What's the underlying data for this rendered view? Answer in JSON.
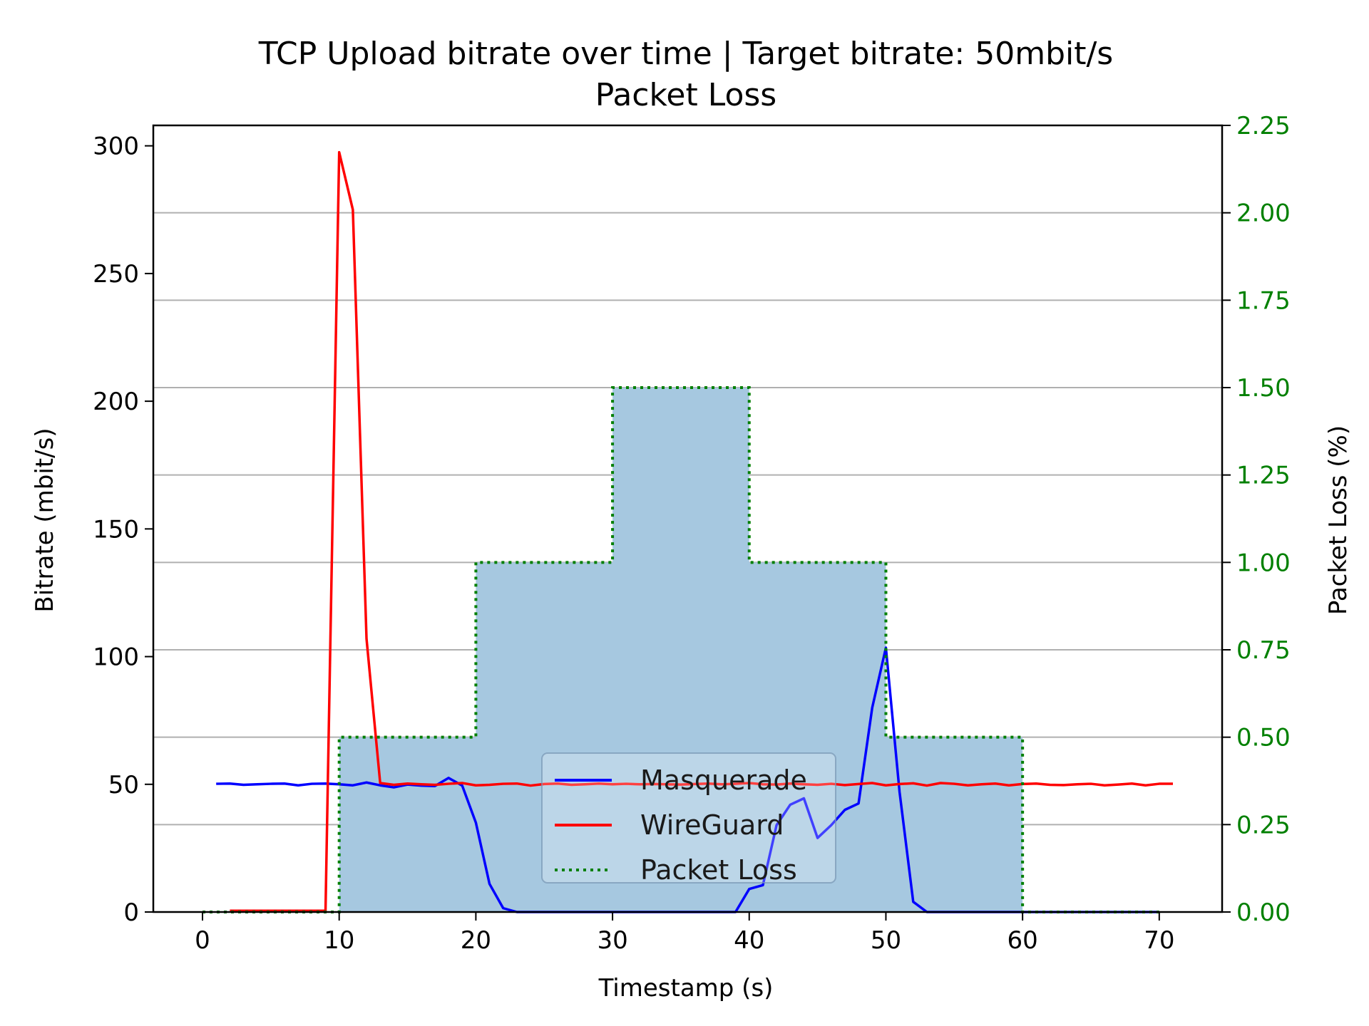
{
  "chart_data": {
    "type": "line",
    "title": "TCP Upload bitrate over time | Target bitrate: 50mbit/s",
    "subtitle": "Packet Loss",
    "xlabel": "Timestamp (s)",
    "ylabel": "Bitrate (mbit/s)",
    "y2label": "Packet Loss (%)",
    "xlim": [
      -3.6,
      74.6
    ],
    "ylim": [
      0,
      308
    ],
    "y2lim": [
      0,
      2.25
    ],
    "x_ticks": [
      0,
      10,
      20,
      30,
      40,
      50,
      60,
      70
    ],
    "x_tick_labels": [
      "0",
      "10",
      "20",
      "30",
      "40",
      "50",
      "60",
      "70"
    ],
    "y_ticks": [
      0,
      50,
      100,
      150,
      200,
      250,
      300
    ],
    "y_tick_labels": [
      "0",
      "50",
      "100",
      "150",
      "200",
      "250",
      "300"
    ],
    "y2_ticks": [
      0,
      0.25,
      0.5,
      0.75,
      1.0,
      1.25,
      1.5,
      1.75,
      2.0,
      2.25
    ],
    "y2_tick_labels": [
      "0.00",
      "0.25",
      "0.50",
      "0.75",
      "1.00",
      "1.25",
      "1.50",
      "1.75",
      "2.00",
      "2.25"
    ],
    "grid": "horizontal lines at right-axis ticks",
    "legend_position": "lower-center",
    "series": [
      {
        "name": "Masquerade",
        "color": "#0000ff",
        "axis": "left",
        "x": [
          1,
          2,
          3,
          4,
          5,
          6,
          7,
          8,
          9,
          10,
          11,
          12,
          13,
          14,
          15,
          16,
          17,
          18,
          19,
          20,
          21,
          22,
          23,
          24,
          25,
          26,
          27,
          28,
          29,
          30,
          31,
          32,
          33,
          34,
          35,
          36,
          37,
          38,
          39,
          40,
          41,
          42,
          43,
          44,
          45,
          46,
          47,
          48,
          49,
          50,
          51,
          52,
          53,
          54,
          55,
          56,
          57,
          58,
          59,
          60,
          61,
          62,
          63,
          64,
          65,
          66,
          67,
          68,
          69,
          70
        ],
        "y": [
          50.2,
          50.3,
          49.8,
          50.0,
          50.2,
          50.3,
          49.6,
          50.2,
          50.3,
          50.0,
          49.6,
          50.7,
          49.6,
          48.8,
          49.9,
          49.5,
          49.3,
          52.5,
          49.5,
          35,
          11,
          1.5,
          0,
          0,
          0,
          0,
          0,
          0,
          0,
          0,
          0,
          0,
          0,
          0,
          0,
          0,
          0,
          0,
          0,
          9,
          10.5,
          34,
          42,
          44.5,
          29,
          34,
          40,
          42.5,
          80,
          103.5,
          47,
          4,
          0,
          0,
          0,
          0,
          0,
          0,
          0,
          0,
          0,
          0,
          0,
          0,
          0,
          0,
          0,
          0,
          0,
          0
        ]
      },
      {
        "name": "WireGuard",
        "color": "#ff0000",
        "axis": "left",
        "x": [
          2,
          3,
          4,
          5,
          6,
          7,
          8,
          9,
          10,
          11,
          12,
          13,
          14,
          15,
          16,
          17,
          18,
          19,
          20,
          21,
          22,
          23,
          24,
          25,
          26,
          27,
          28,
          29,
          30,
          31,
          32,
          33,
          34,
          35,
          36,
          37,
          38,
          39,
          40,
          41,
          42,
          43,
          44,
          45,
          46,
          47,
          48,
          49,
          50,
          51,
          52,
          53,
          54,
          55,
          56,
          57,
          58,
          59,
          60,
          61,
          62,
          63,
          64,
          65,
          66,
          67,
          68,
          69,
          70,
          71
        ],
        "y": [
          0.5,
          0.5,
          0.5,
          0.5,
          0.5,
          0.5,
          0.5,
          0.5,
          297.5,
          275,
          107,
          50.5,
          49.8,
          50.3,
          50,
          49.8,
          50.2,
          50.5,
          49.6,
          49.8,
          50.2,
          50.3,
          49.5,
          50.1,
          50.3,
          49.8,
          50,
          50.3,
          50,
          50.2,
          50,
          50.1,
          50,
          49.9,
          50.1,
          50.3,
          50,
          50.2,
          50.5,
          50,
          49.9,
          50.3,
          50,
          49.8,
          50.2,
          49.7,
          50.1,
          50.5,
          49.6,
          50.1,
          50.4,
          49.5,
          50.5,
          50.2,
          49.6,
          50,
          50.3,
          49.6,
          50.1,
          50.3,
          49.8,
          49.7,
          50,
          50.2,
          49.6,
          49.9,
          50.3,
          49.6,
          50.2,
          50.2
        ]
      },
      {
        "name": "Packet Loss",
        "color": "#007f00",
        "axis": "right",
        "style": "dotted-step-fill",
        "fill_color": "#a6c8e0",
        "x": [
          0,
          10,
          20,
          30,
          40,
          50,
          60,
          70
        ],
        "y": [
          0,
          0.5,
          1.0,
          1.5,
          1.0,
          0.5,
          0,
          0
        ]
      }
    ]
  }
}
